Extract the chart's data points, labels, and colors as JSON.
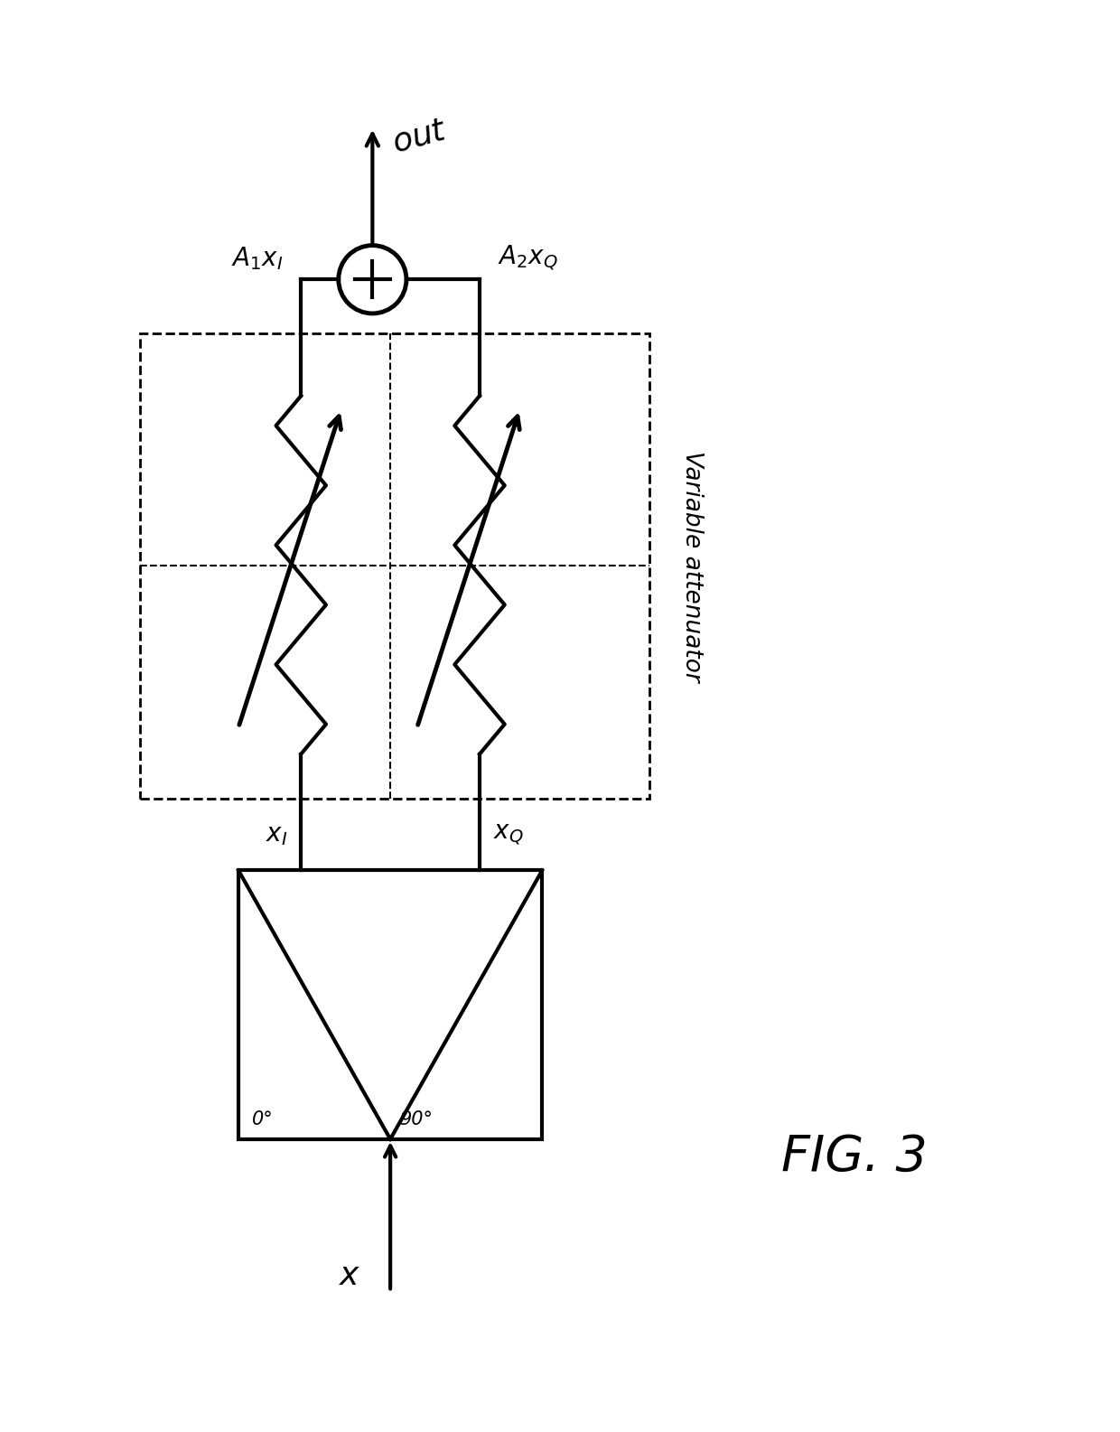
{
  "title": "FIG. 3",
  "bg_color": "#ffffff",
  "line_color": "#000000",
  "fig_width": 12.4,
  "fig_height": 15.85,
  "label_x": "$x$",
  "label_xI": "$x_I$",
  "label_xQ": "$x_Q$",
  "label_A1xI": "$A_1 x_I$",
  "label_A2xQ": "$A_2 x_Q$",
  "label_out": "$out$",
  "label_0deg": "0°",
  "label_90deg": "90°",
  "label_var_att": "Variable attenuator"
}
